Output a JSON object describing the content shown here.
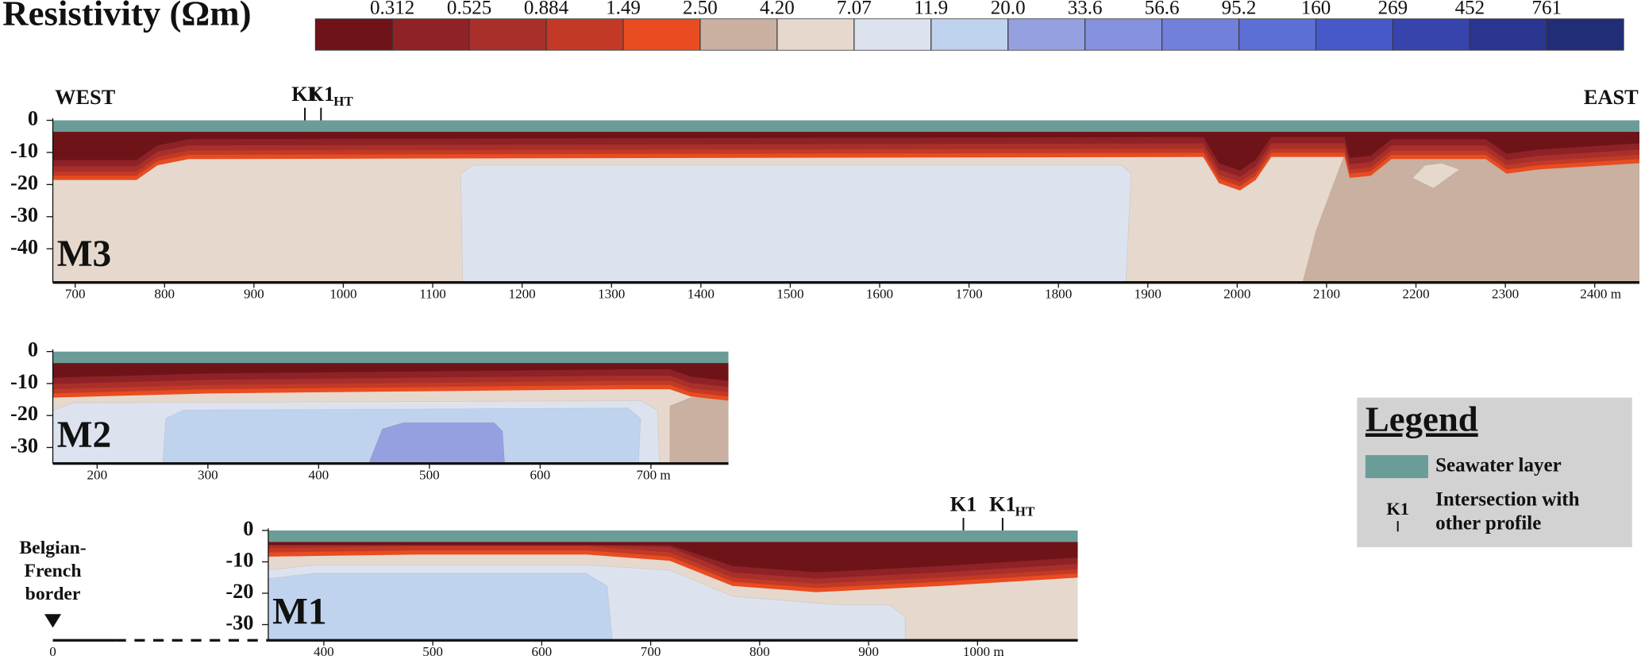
{
  "title": "Resistivity (Ωm)",
  "colorbar": {
    "ticks": [
      0.312,
      0.525,
      0.884,
      1.49,
      {
        "value": 2.5,
        "label": "2.50"
      },
      {
        "value": 4.2,
        "label": "4.20"
      },
      7.07,
      11.9,
      {
        "value": 20,
        "label": "20.0"
      },
      33.6,
      56.6,
      95.2,
      160,
      269,
      452,
      761
    ],
    "colors": [
      "#6e1419",
      "#8f2226",
      "#a9302a",
      "#c23a26",
      "#e84c20",
      "#c9b0a0",
      "#e6d8cc",
      "#dde3ee",
      "#c0d3ee",
      "#95a0e0",
      "#8591de",
      "#7180da",
      "#5c6fd4",
      "#4758c8",
      "#3644ab",
      "#2a3590",
      "#222d78"
    ]
  },
  "chart_data": [
    {
      "type": "section",
      "name": "M3",
      "xlim": [
        675,
        2450
      ],
      "ylim": [
        -50.5,
        0
      ],
      "xticks": [
        700,
        800,
        900,
        1000,
        1100,
        1200,
        1300,
        1400,
        1500,
        1600,
        1700,
        1800,
        1900,
        2000,
        2100,
        2200,
        2300,
        {
          "value": 2400,
          "label": "2400 m"
        }
      ],
      "yticks": [
        0,
        -10,
        -20,
        -30,
        -40
      ],
      "annotations": [
        {
          "text": "WEST",
          "side": "left"
        },
        {
          "text": "EAST",
          "side": "right"
        }
      ],
      "intersections": [
        {
          "label": "K1",
          "x": 957
        },
        {
          "label": "K1",
          "subscript": "HT",
          "x": 975
        }
      ]
    },
    {
      "type": "section",
      "name": "M2",
      "xlim": [
        160,
        770
      ],
      "ylim": [
        -35,
        0
      ],
      "xticks": [
        200,
        300,
        400,
        500,
        600,
        {
          "value": 700,
          "label": "700 m"
        }
      ],
      "yticks": [
        0,
        -10,
        -20,
        -30
      ]
    },
    {
      "type": "section",
      "name": "M1",
      "xlim": [
        349,
        1092
      ],
      "ylim": [
        -35,
        0
      ],
      "xticks": [
        400,
        500,
        600,
        700,
        800,
        900,
        {
          "value": 1000,
          "label": "1000 m"
        }
      ],
      "yticks": [
        0,
        -10,
        -20,
        -30
      ],
      "intersections": [
        {
          "label": "K1",
          "x": 987
        },
        {
          "label": "K1",
          "subscript": "HT",
          "x": 1023
        }
      ],
      "border": {
        "text": "Belgian-\nFrench\nborder",
        "x": 0
      }
    }
  ],
  "legend": {
    "title": "Legend",
    "seawater_color": "#6a9c98",
    "items": [
      {
        "symbol": "seawater",
        "text": "Seawater layer"
      },
      {
        "symbol_label": "K1",
        "text": "Intersection with\nother profile"
      }
    ]
  }
}
